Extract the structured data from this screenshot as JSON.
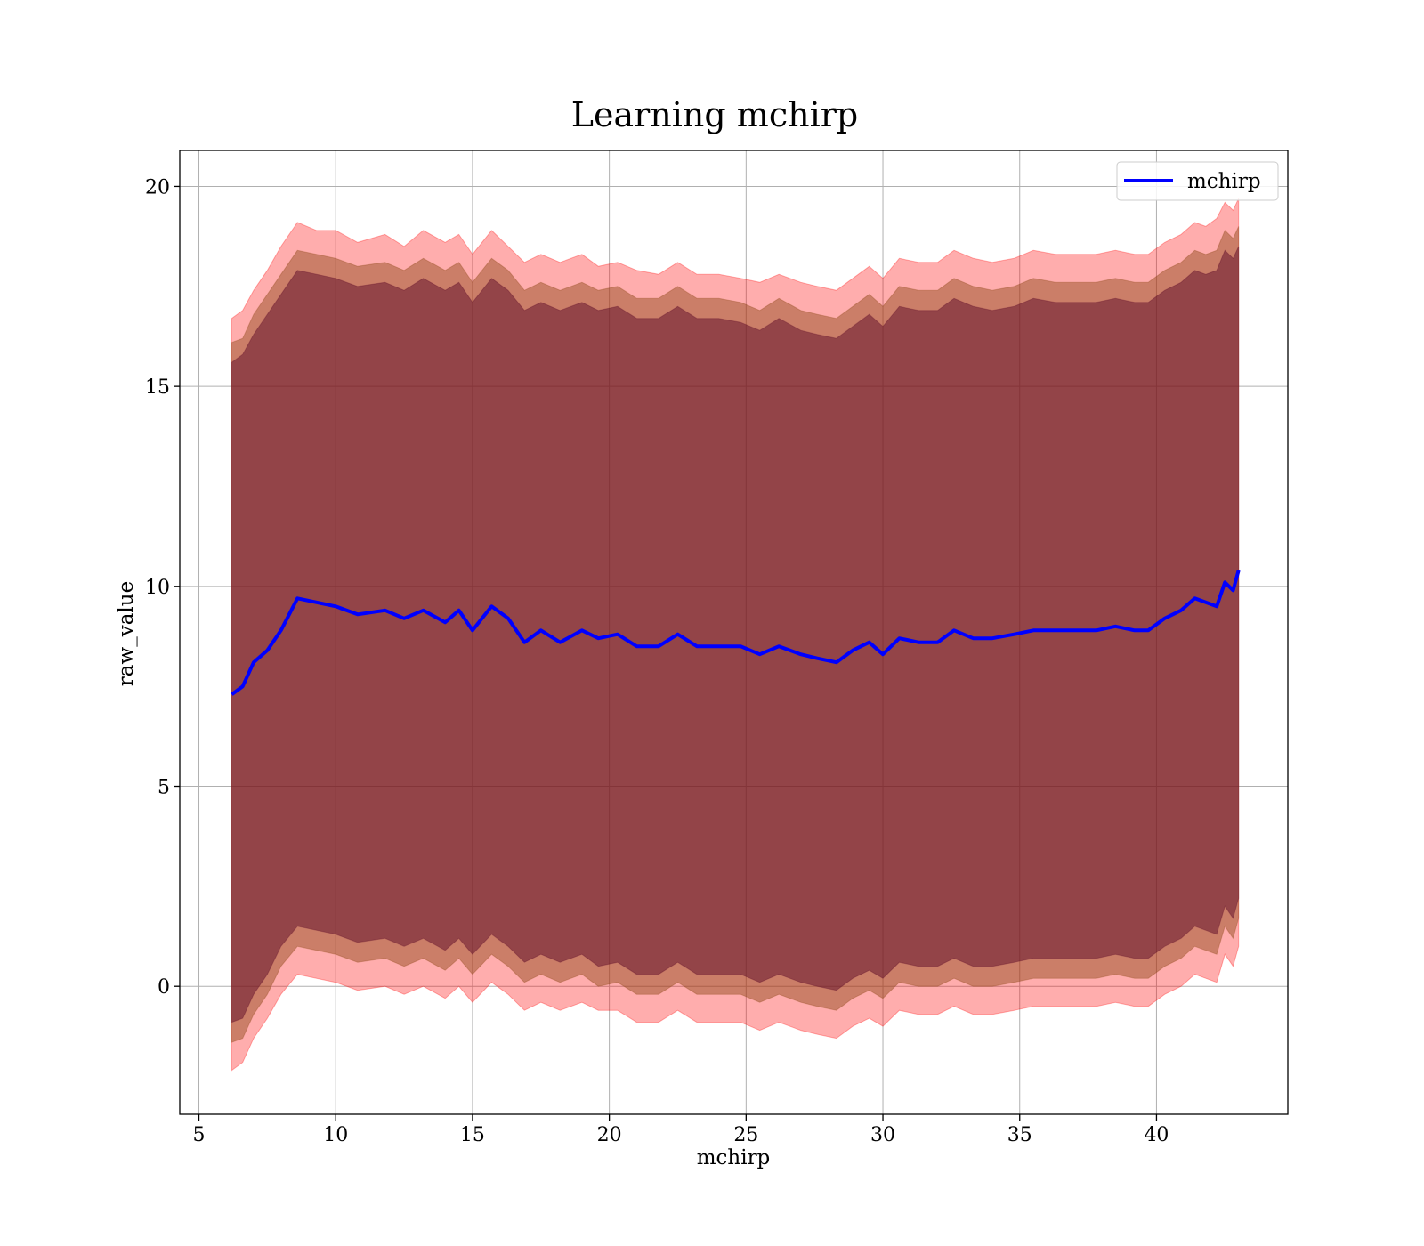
{
  "chart_data": {
    "type": "area",
    "title": "Learning mchirp",
    "xlabel": "mchirp",
    "ylabel": "raw_value",
    "xlim": [
      4.3,
      44.8
    ],
    "ylim": [
      -3.2,
      20.9
    ],
    "xticks": [
      5,
      10,
      15,
      20,
      25,
      30,
      35,
      40
    ],
    "yticks": [
      0,
      5,
      10,
      15,
      20
    ],
    "grid": true,
    "legend": {
      "position": "upper-right",
      "entries": [
        "mchirp"
      ]
    },
    "colors": {
      "line": "#0000ff",
      "band_outer": "#ff0000",
      "band_middle": "#8b4513",
      "band_inner": "#5c0a28",
      "grid": "#b0b0b0"
    },
    "x": [
      6.2,
      6.6,
      7.0,
      7.5,
      8.0,
      8.6,
      9.3,
      10.0,
      10.8,
      11.8,
      12.5,
      13.2,
      14.0,
      14.5,
      15.0,
      15.7,
      16.3,
      16.9,
      17.5,
      18.2,
      19.0,
      19.6,
      20.3,
      21.0,
      21.8,
      22.5,
      23.2,
      24.0,
      24.8,
      25.5,
      26.2,
      27.0,
      27.6,
      28.3,
      28.9,
      29.5,
      30.0,
      30.6,
      31.3,
      32.0,
      32.6,
      33.3,
      34.0,
      34.8,
      35.5,
      36.3,
      37.0,
      37.8,
      38.5,
      39.2,
      39.7,
      40.3,
      40.9,
      41.4,
      41.8,
      42.2,
      42.5,
      42.8,
      43.0
    ],
    "series": [
      {
        "name": "mchirp",
        "values": [
          7.3,
          7.5,
          8.1,
          8.4,
          8.9,
          9.7,
          9.6,
          9.5,
          9.3,
          9.4,
          9.2,
          9.4,
          9.1,
          9.4,
          8.9,
          9.5,
          9.2,
          8.6,
          8.9,
          8.6,
          8.9,
          8.7,
          8.8,
          8.5,
          8.5,
          8.8,
          8.5,
          8.5,
          8.5,
          8.3,
          8.5,
          8.3,
          8.2,
          8.1,
          8.4,
          8.6,
          8.3,
          8.7,
          8.6,
          8.6,
          8.9,
          8.7,
          8.7,
          8.8,
          8.9,
          8.9,
          8.9,
          8.9,
          9.0,
          8.9,
          8.9,
          9.2,
          9.4,
          9.7,
          9.6,
          9.5,
          10.1,
          9.9,
          10.4
        ]
      }
    ],
    "bands": [
      {
        "upper": [
          16.7,
          16.9,
          17.4,
          17.9,
          18.5,
          19.1,
          18.9,
          18.9,
          18.6,
          18.8,
          18.5,
          18.9,
          18.6,
          18.8,
          18.3,
          18.9,
          18.5,
          18.1,
          18.3,
          18.1,
          18.3,
          18.0,
          18.1,
          17.9,
          17.8,
          18.1,
          17.8,
          17.8,
          17.7,
          17.6,
          17.8,
          17.6,
          17.5,
          17.4,
          17.7,
          18.0,
          17.7,
          18.2,
          18.1,
          18.1,
          18.4,
          18.2,
          18.1,
          18.2,
          18.4,
          18.3,
          18.3,
          18.3,
          18.4,
          18.3,
          18.3,
          18.6,
          18.8,
          19.1,
          19.0,
          19.2,
          19.6,
          19.4,
          19.7
        ],
        "lower": [
          -2.1,
          -1.9,
          -1.3,
          -0.8,
          -0.2,
          0.3,
          0.2,
          0.1,
          -0.1,
          0.0,
          -0.2,
          0.0,
          -0.3,
          0.0,
          -0.4,
          0.1,
          -0.2,
          -0.6,
          -0.4,
          -0.6,
          -0.4,
          -0.6,
          -0.6,
          -0.9,
          -0.9,
          -0.6,
          -0.9,
          -0.9,
          -0.9,
          -1.1,
          -0.9,
          -1.1,
          -1.2,
          -1.3,
          -1.0,
          -0.8,
          -1.0,
          -0.6,
          -0.7,
          -0.7,
          -0.5,
          -0.7,
          -0.7,
          -0.6,
          -0.5,
          -0.5,
          -0.5,
          -0.5,
          -0.4,
          -0.5,
          -0.5,
          -0.2,
          0.0,
          0.3,
          0.2,
          0.1,
          0.8,
          0.5,
          1.0
        ]
      },
      {
        "upper": [
          16.1,
          16.2,
          16.8,
          17.3,
          17.8,
          18.4,
          18.3,
          18.2,
          18.0,
          18.1,
          17.9,
          18.2,
          17.9,
          18.1,
          17.6,
          18.2,
          17.9,
          17.4,
          17.6,
          17.4,
          17.6,
          17.4,
          17.5,
          17.2,
          17.2,
          17.5,
          17.2,
          17.2,
          17.1,
          16.9,
          17.2,
          16.9,
          16.8,
          16.7,
          17.0,
          17.3,
          17.0,
          17.5,
          17.4,
          17.4,
          17.7,
          17.5,
          17.4,
          17.5,
          17.7,
          17.6,
          17.6,
          17.6,
          17.7,
          17.6,
          17.6,
          17.9,
          18.1,
          18.4,
          18.3,
          18.4,
          18.9,
          18.7,
          19.0
        ],
        "lower": [
          -1.4,
          -1.3,
          -0.7,
          -0.2,
          0.5,
          1.0,
          0.9,
          0.8,
          0.6,
          0.7,
          0.5,
          0.7,
          0.4,
          0.7,
          0.3,
          0.8,
          0.5,
          0.1,
          0.3,
          0.1,
          0.3,
          0.0,
          0.1,
          -0.2,
          -0.2,
          0.1,
          -0.2,
          -0.2,
          -0.2,
          -0.4,
          -0.2,
          -0.4,
          -0.5,
          -0.6,
          -0.3,
          -0.1,
          -0.3,
          0.1,
          0.0,
          0.0,
          0.2,
          0.0,
          0.0,
          0.1,
          0.2,
          0.2,
          0.2,
          0.2,
          0.3,
          0.2,
          0.2,
          0.5,
          0.7,
          1.0,
          0.9,
          0.8,
          1.5,
          1.2,
          1.7
        ]
      },
      {
        "upper": [
          15.6,
          15.8,
          16.3,
          16.8,
          17.3,
          17.9,
          17.8,
          17.7,
          17.5,
          17.6,
          17.4,
          17.7,
          17.4,
          17.6,
          17.1,
          17.7,
          17.4,
          16.9,
          17.1,
          16.9,
          17.1,
          16.9,
          17.0,
          16.7,
          16.7,
          17.0,
          16.7,
          16.7,
          16.6,
          16.4,
          16.7,
          16.4,
          16.3,
          16.2,
          16.5,
          16.8,
          16.5,
          17.0,
          16.9,
          16.9,
          17.2,
          17.0,
          16.9,
          17.0,
          17.2,
          17.1,
          17.1,
          17.1,
          17.2,
          17.1,
          17.1,
          17.4,
          17.6,
          17.9,
          17.8,
          17.9,
          18.4,
          18.2,
          18.5
        ],
        "lower": [
          -0.9,
          -0.8,
          -0.2,
          0.3,
          1.0,
          1.5,
          1.4,
          1.3,
          1.1,
          1.2,
          1.0,
          1.2,
          0.9,
          1.2,
          0.8,
          1.3,
          1.0,
          0.6,
          0.8,
          0.6,
          0.8,
          0.5,
          0.6,
          0.3,
          0.3,
          0.6,
          0.3,
          0.3,
          0.3,
          0.1,
          0.3,
          0.1,
          0.0,
          -0.1,
          0.2,
          0.4,
          0.2,
          0.6,
          0.5,
          0.5,
          0.7,
          0.5,
          0.5,
          0.6,
          0.7,
          0.7,
          0.7,
          0.7,
          0.8,
          0.7,
          0.7,
          1.0,
          1.2,
          1.5,
          1.4,
          1.3,
          2.0,
          1.7,
          2.2
        ]
      }
    ]
  }
}
